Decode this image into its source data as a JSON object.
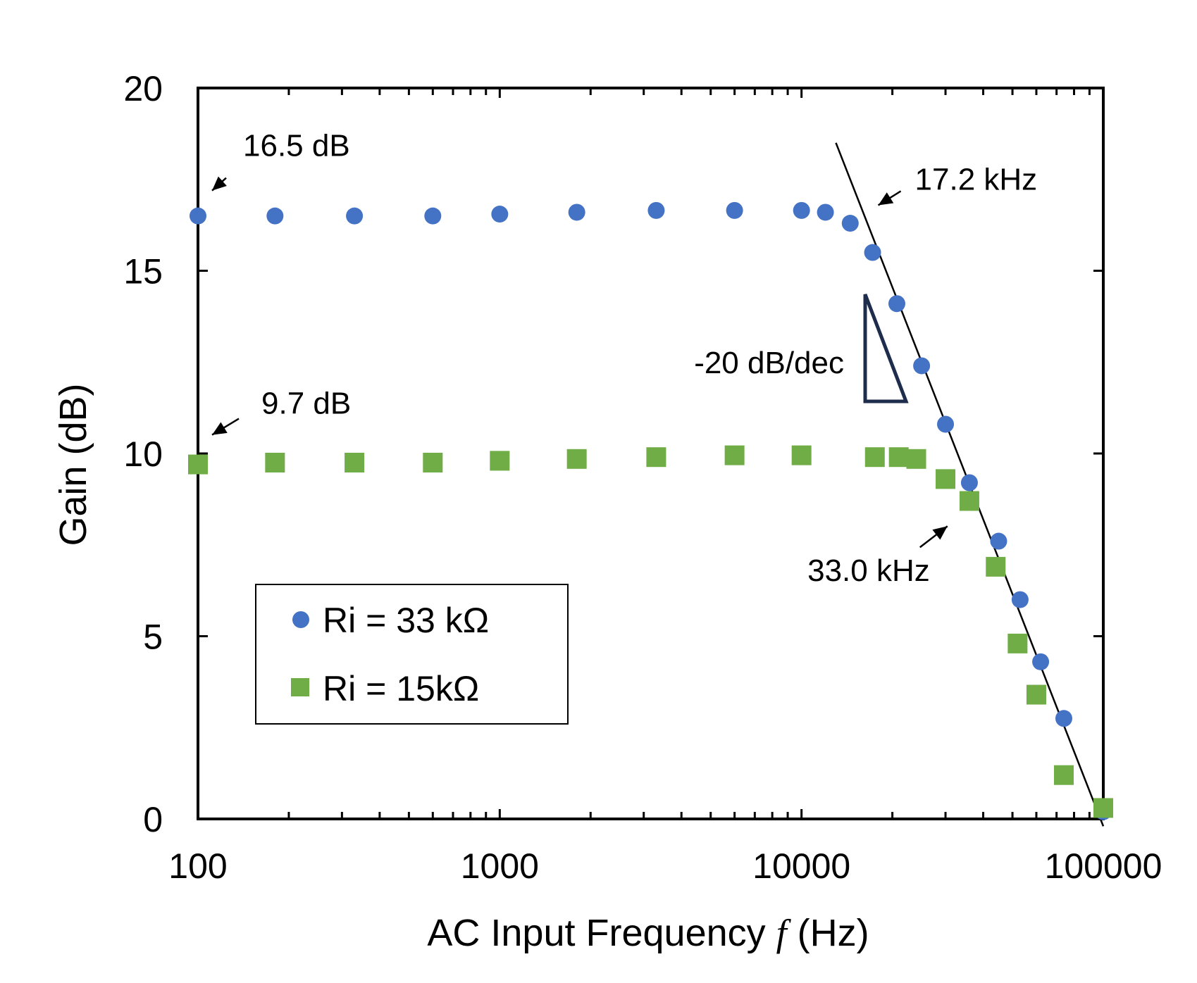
{
  "chart_data": {
    "type": "scatter",
    "xlabel_main": "AC Input Frequency ",
    "xlabel_var": "f",
    "xlabel_unit": " (Hz)",
    "ylabel": "Gain (dB)",
    "x_scale": "log",
    "xlim": [
      100,
      100000
    ],
    "ylim": [
      0,
      20
    ],
    "xticks": [
      100,
      1000,
      10000,
      100000
    ],
    "xtick_labels": [
      "100",
      "1000",
      "10000",
      "100000"
    ],
    "yticks": [
      0,
      5,
      10,
      15,
      20
    ],
    "ytick_labels": [
      "0",
      "5",
      "10",
      "15",
      "20"
    ],
    "grid": false,
    "legend_placement": "bottom-left",
    "series": [
      {
        "name": "Ri = 33 kΩ",
        "marker": "circle",
        "color": "#4472C4",
        "x": [
          100,
          180,
          330,
          600,
          1000,
          1800,
          3300,
          6000,
          10000,
          12000,
          14500,
          17200,
          20700,
          25000,
          30000,
          36000,
          45000,
          53000,
          62000,
          74000,
          100000
        ],
        "y": [
          16.5,
          16.5,
          16.5,
          16.5,
          16.55,
          16.6,
          16.65,
          16.65,
          16.65,
          16.6,
          16.3,
          15.5,
          14.1,
          12.4,
          10.8,
          9.2,
          7.6,
          6.0,
          4.3,
          2.75,
          0.2
        ]
      },
      {
        "name": "Ri = 15kΩ",
        "marker": "square",
        "color": "#70AD47",
        "x": [
          100,
          180,
          330,
          600,
          1000,
          1800,
          3300,
          6000,
          10000,
          17500,
          21000,
          24000,
          30000,
          36000,
          44000,
          52000,
          60000,
          74000,
          100000
        ],
        "y": [
          9.7,
          9.75,
          9.75,
          9.75,
          9.8,
          9.85,
          9.9,
          9.95,
          9.95,
          9.9,
          9.9,
          9.85,
          9.3,
          8.7,
          6.9,
          4.8,
          3.4,
          1.2,
          0.3
        ]
      }
    ],
    "fit_line": {
      "x": [
        13000,
        100000
      ],
      "y": [
        18.5,
        -0.2
      ],
      "color": "#000000"
    },
    "slope_triangle": {
      "label": "-20 dB/dec",
      "color": "#1F2D4D"
    },
    "annotations": [
      {
        "text": "16.5 dB",
        "target_x": 100,
        "target_y": 16.5
      },
      {
        "text": "9.7 dB",
        "target_x": 100,
        "target_y": 9.7
      },
      {
        "text": "17.2 kHz",
        "target_x": 17200,
        "target_y": 16.6
      },
      {
        "text": "33.0 kHz",
        "target_x": 33000,
        "target_y": 8.3
      }
    ]
  }
}
